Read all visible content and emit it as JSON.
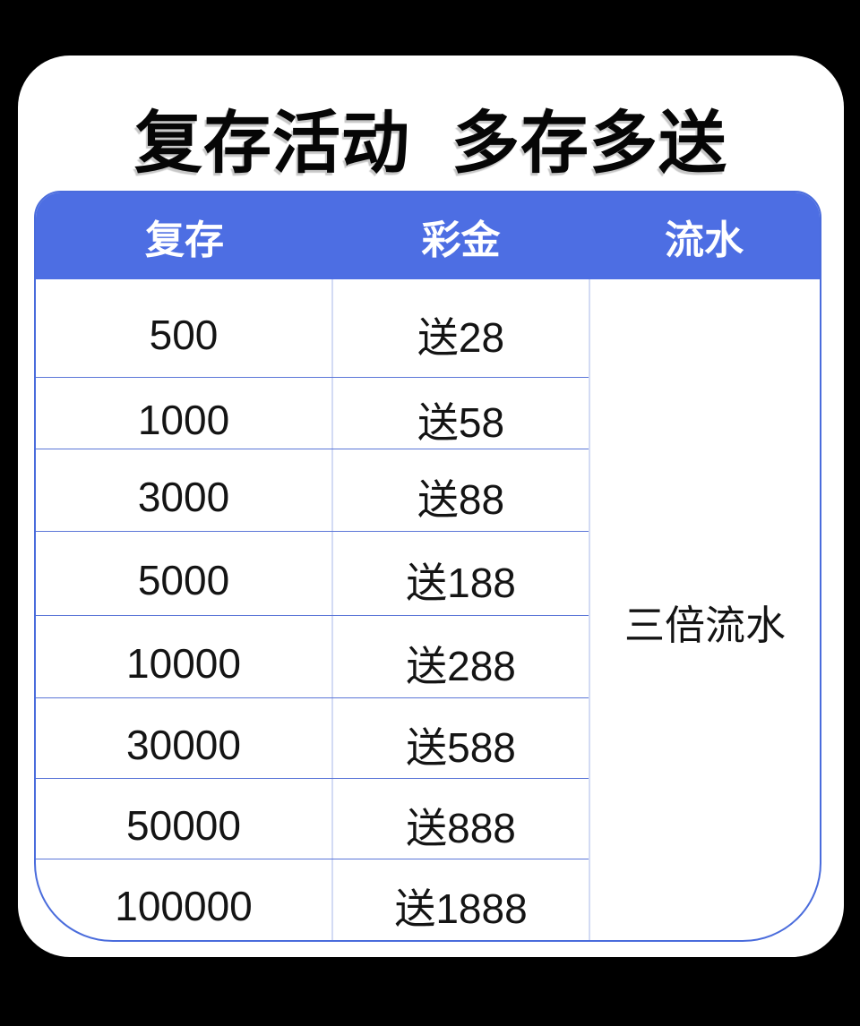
{
  "title": {
    "left": "复存活动",
    "right": "多存多送"
  },
  "colors": {
    "page_background": "#000000",
    "card_background": "#ffffff",
    "header_blue": "#4d6ee3",
    "outer_border_blue": "#4a6cdc",
    "row_line_blue": "#5b76d8",
    "column_line_light": "#d3dbf4",
    "header_text": "#ffffff",
    "body_text": "#141414",
    "title_text": "#060606"
  },
  "table": {
    "headers": [
      {
        "label": "复存"
      },
      {
        "label": "彩金"
      },
      {
        "label": "流水"
      }
    ],
    "rows": [
      {
        "deposit": "500",
        "bonus": "送28"
      },
      {
        "deposit": "1000",
        "bonus": "送58"
      },
      {
        "deposit": "3000",
        "bonus": "送88"
      },
      {
        "deposit": "5000",
        "bonus": "送188"
      },
      {
        "deposit": "10000",
        "bonus": "送288"
      },
      {
        "deposit": "30000",
        "bonus": "送588"
      },
      {
        "deposit": "50000",
        "bonus": "送888"
      },
      {
        "deposit": "100000",
        "bonus": "送1888"
      }
    ],
    "turnover_note": "三倍流水"
  },
  "chart_data": {
    "type": "table",
    "title": "复存活动 多存多送",
    "columns": [
      "复存",
      "彩金",
      "流水"
    ],
    "rows": [
      [
        "500",
        "送28",
        "三倍流水"
      ],
      [
        "1000",
        "送58",
        "三倍流水"
      ],
      [
        "3000",
        "送88",
        "三倍流水"
      ],
      [
        "5000",
        "送188",
        "三倍流水"
      ],
      [
        "10000",
        "送288",
        "三倍流水"
      ],
      [
        "30000",
        "送588",
        "三倍流水"
      ],
      [
        "50000",
        "送888",
        "三倍流水"
      ],
      [
        "100000",
        "送1888",
        "三倍流水"
      ]
    ],
    "notes": "流水 column is one merged cell reading 三倍流水 spanning all 8 rows"
  }
}
